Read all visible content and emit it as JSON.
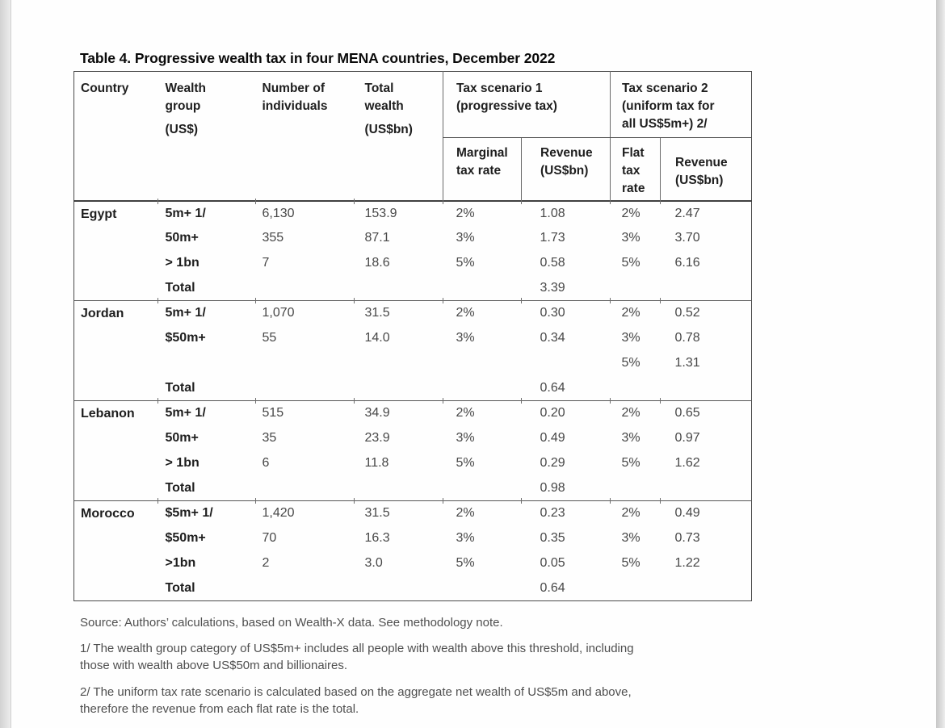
{
  "page": {
    "title": "Table 4. Progressive wealth tax in four MENA countries, December 2022"
  },
  "table": {
    "header": {
      "country": "Country",
      "wealth_group": {
        "lines": [
          "Wealth",
          "group"
        ],
        "unit": "(US$)"
      },
      "individuals": {
        "lines": [
          "Number of",
          "individuals"
        ]
      },
      "total_wealth": {
        "lines": [
          "Total",
          "wealth"
        ],
        "unit": "(US$bn)"
      },
      "scenario1": {
        "lines": [
          "Tax scenario 1",
          "(progressive tax)"
        ]
      },
      "scenario2": {
        "lines": [
          "Tax scenario 2",
          "(uniform tax for",
          "all US$5m+) 2/"
        ]
      },
      "marginal": {
        "lines": [
          "Marginal",
          "tax rate"
        ]
      },
      "revenue1": {
        "lines": [
          "Revenue",
          "(US$bn)"
        ]
      },
      "flat": {
        "lines": [
          "Flat",
          "tax",
          "rate"
        ]
      },
      "revenue2": {
        "lines": [
          "Revenue",
          "(US$bn)"
        ]
      }
    },
    "groups": [
      {
        "country": "Egypt",
        "rows": [
          {
            "group": "5m+ 1/",
            "individuals": "6,130",
            "wealth": "153.9",
            "marginal": "2%",
            "revenue1": "1.08",
            "flat": "2%",
            "revenue2": "2.47"
          },
          {
            "group": "50m+",
            "individuals": "355",
            "wealth": "87.1",
            "marginal": "3%",
            "revenue1": "1.73",
            "flat": "3%",
            "revenue2": "3.70"
          },
          {
            "group": "> 1bn",
            "individuals": "7",
            "wealth": "18.6",
            "marginal": "5%",
            "revenue1": "0.58",
            "flat": "5%",
            "revenue2": "6.16"
          },
          {
            "group": "Total",
            "individuals": "",
            "wealth": "",
            "marginal": "",
            "revenue1": "3.39",
            "flat": "",
            "revenue2": ""
          }
        ]
      },
      {
        "country": "Jordan",
        "rows": [
          {
            "group": "5m+ 1/",
            "individuals": "1,070",
            "wealth": "31.5",
            "marginal": "2%",
            "revenue1": "0.30",
            "flat": "2%",
            "revenue2": "0.52"
          },
          {
            "group": "$50m+",
            "individuals": "55",
            "wealth": "14.0",
            "marginal": "3%",
            "revenue1": "0.34",
            "flat": "3%",
            "revenue2": "0.78"
          },
          {
            "group": "",
            "individuals": "",
            "wealth": "",
            "marginal": "",
            "revenue1": "",
            "flat": "5%",
            "revenue2": "1.31"
          },
          {
            "group": "Total",
            "individuals": "",
            "wealth": "",
            "marginal": "",
            "revenue1": "0.64",
            "flat": "",
            "revenue2": ""
          }
        ]
      },
      {
        "country": "Lebanon",
        "rows": [
          {
            "group": "5m+ 1/",
            "individuals": "515",
            "wealth": "34.9",
            "marginal": "2%",
            "revenue1": "0.20",
            "flat": "2%",
            "revenue2": "0.65"
          },
          {
            "group": "50m+",
            "individuals": "35",
            "wealth": "23.9",
            "marginal": "3%",
            "revenue1": "0.49",
            "flat": "3%",
            "revenue2": "0.97"
          },
          {
            "group": "> 1bn",
            "individuals": "6",
            "wealth": "11.8",
            "marginal": "5%",
            "revenue1": "0.29",
            "flat": "5%",
            "revenue2": "1.62"
          },
          {
            "group": "Total",
            "individuals": "",
            "wealth": "",
            "marginal": "",
            "revenue1": "0.98",
            "flat": "",
            "revenue2": ""
          }
        ]
      },
      {
        "country": "Morocco",
        "rows": [
          {
            "group": "$5m+ 1/",
            "individuals": "1,420",
            "wealth": "31.5",
            "marginal": "2%",
            "revenue1": "0.23",
            "flat": "2%",
            "revenue2": "0.49"
          },
          {
            "group": "$50m+",
            "individuals": "70",
            "wealth": "16.3",
            "marginal": "3%",
            "revenue1": "0.35",
            "flat": "3%",
            "revenue2": "0.73"
          },
          {
            "group": ">1bn",
            "individuals": "2",
            "wealth": "3.0",
            "marginal": "5%",
            "revenue1": "0.05",
            "flat": "5%",
            "revenue2": "1.22"
          },
          {
            "group": "Total",
            "individuals": "",
            "wealth": "",
            "marginal": "",
            "revenue1": "0.64",
            "flat": "",
            "revenue2": ""
          }
        ]
      }
    ]
  },
  "notes": {
    "source": "Source: Authors’ calculations, based on Wealth-X data. See methodology note.",
    "fn1": [
      "1/ The wealth group category of US$5m+ includes all people with wealth above this threshold, including",
      "those with wealth above US$50m and billionaires."
    ],
    "fn2": [
      "2/ The uniform tax rate scenario is calculated based on the aggregate net wealth of US$5m and above,",
      "therefore the revenue from each flat rate is the total."
    ]
  }
}
